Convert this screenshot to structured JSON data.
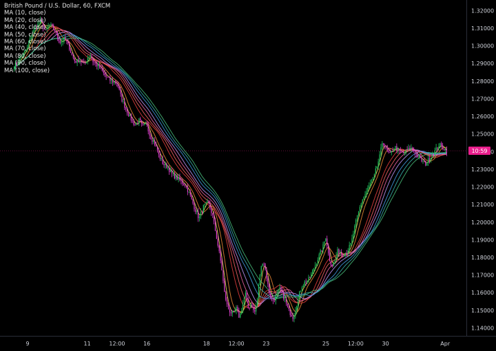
{
  "chart_data": {
    "type": "candlestick",
    "title": "British Pound / U.S. Dollar, 60, FXCM",
    "background": "#000000",
    "up_color": "#22c55e",
    "down_color": "#e040d0",
    "y_ticks": [
      "1.32000",
      "1.31000",
      "1.30000",
      "1.29000",
      "1.28000",
      "1.27000",
      "1.26000",
      "1.25000",
      "1.24000",
      "1.23000",
      "1.22000",
      "1.21000",
      "1.20000",
      "1.19000",
      "1.18000",
      "1.17000",
      "1.16000",
      "1.15000",
      "1.14000"
    ],
    "ylim": [
      1.1355,
      1.326
    ],
    "price_label": {
      "text": "10:59",
      "value": 1.2405,
      "color": "#e91e8c"
    },
    "x_ticks": [
      {
        "label": "9",
        "pos": 0.0
      },
      {
        "label": "11",
        "pos": 2.0
      },
      {
        "label": "12:00",
        "pos": 3.0
      },
      {
        "label": "16",
        "pos": 4.0
      },
      {
        "label": "18",
        "pos": 6.0
      },
      {
        "label": "12:00",
        "pos": 7.0
      },
      {
        "label": "23",
        "pos": 8.0
      },
      {
        "label": "25",
        "pos": 10.0
      },
      {
        "label": "12:00",
        "pos": 11.0
      },
      {
        "label": "30",
        "pos": 12.0
      },
      {
        "label": "Apr",
        "pos": 14.0
      }
    ],
    "x_range": [
      -0.45,
      14.5
    ],
    "close_path": [
      [
        -0.45,
        1.288
      ],
      [
        0.0,
        1.299
      ],
      [
        0.15,
        1.307
      ],
      [
        0.3,
        1.311
      ],
      [
        0.45,
        1.314
      ],
      [
        0.6,
        1.308
      ],
      [
        0.75,
        1.312
      ],
      [
        0.9,
        1.309
      ],
      [
        1.0,
        1.305
      ],
      [
        1.1,
        1.302
      ],
      [
        1.25,
        1.304
      ],
      [
        1.4,
        1.299
      ],
      [
        1.5,
        1.294
      ],
      [
        1.6,
        1.291
      ],
      [
        1.75,
        1.292
      ],
      [
        1.9,
        1.289
      ],
      [
        2.0,
        1.293
      ],
      [
        2.1,
        1.295
      ],
      [
        2.2,
        1.291
      ],
      [
        2.4,
        1.288
      ],
      [
        2.6,
        1.283
      ],
      [
        2.8,
        1.28
      ],
      [
        3.0,
        1.279
      ],
      [
        3.15,
        1.27
      ],
      [
        3.3,
        1.264
      ],
      [
        3.45,
        1.259
      ],
      [
        3.6,
        1.255
      ],
      [
        3.75,
        1.258
      ],
      [
        3.85,
        1.254
      ],
      [
        4.0,
        1.256
      ],
      [
        4.1,
        1.249
      ],
      [
        4.25,
        1.245
      ],
      [
        4.4,
        1.238
      ],
      [
        4.55,
        1.233
      ],
      [
        4.7,
        1.231
      ],
      [
        4.85,
        1.227
      ],
      [
        5.0,
        1.225
      ],
      [
        5.15,
        1.223
      ],
      [
        5.3,
        1.221
      ],
      [
        5.45,
        1.215
      ],
      [
        5.6,
        1.208
      ],
      [
        5.75,
        1.202
      ],
      [
        5.9,
        1.209
      ],
      [
        6.05,
        1.211
      ],
      [
        6.2,
        1.204
      ],
      [
        6.35,
        1.19
      ],
      [
        6.5,
        1.175
      ],
      [
        6.6,
        1.16
      ],
      [
        6.7,
        1.152
      ],
      [
        6.8,
        1.149
      ],
      [
        6.9,
        1.148
      ],
      [
        7.0,
        1.151
      ],
      [
        7.1,
        1.146
      ],
      [
        7.2,
        1.152
      ],
      [
        7.3,
        1.16
      ],
      [
        7.4,
        1.151
      ],
      [
        7.5,
        1.154
      ],
      [
        7.6,
        1.148
      ],
      [
        7.7,
        1.156
      ],
      [
        7.8,
        1.172
      ],
      [
        7.9,
        1.179
      ],
      [
        8.0,
        1.17
      ],
      [
        8.1,
        1.16
      ],
      [
        8.2,
        1.155
      ],
      [
        8.3,
        1.157
      ],
      [
        8.45,
        1.162
      ],
      [
        8.6,
        1.157
      ],
      [
        8.75,
        1.15
      ],
      [
        8.9,
        1.146
      ],
      [
        9.0,
        1.152
      ],
      [
        9.1,
        1.159
      ],
      [
        9.2,
        1.164
      ],
      [
        9.3,
        1.166
      ],
      [
        9.45,
        1.168
      ],
      [
        9.6,
        1.174
      ],
      [
        9.75,
        1.18
      ],
      [
        9.9,
        1.186
      ],
      [
        10.0,
        1.192
      ],
      [
        10.1,
        1.18
      ],
      [
        10.2,
        1.175
      ],
      [
        10.3,
        1.178
      ],
      [
        10.4,
        1.184
      ],
      [
        10.55,
        1.182
      ],
      [
        10.7,
        1.183
      ],
      [
        10.85,
        1.188
      ],
      [
        10.95,
        1.196
      ],
      [
        11.05,
        1.203
      ],
      [
        11.2,
        1.212
      ],
      [
        11.35,
        1.217
      ],
      [
        11.5,
        1.222
      ],
      [
        11.6,
        1.225
      ],
      [
        11.7,
        1.231
      ],
      [
        11.8,
        1.237
      ],
      [
        11.9,
        1.246
      ],
      [
        12.0,
        1.242
      ],
      [
        12.15,
        1.238
      ],
      [
        12.3,
        1.243
      ],
      [
        12.45,
        1.24
      ],
      [
        12.6,
        1.239
      ],
      [
        12.75,
        1.241
      ],
      [
        12.9,
        1.242
      ],
      [
        13.05,
        1.238
      ],
      [
        13.2,
        1.235
      ],
      [
        13.35,
        1.233
      ],
      [
        13.5,
        1.237
      ],
      [
        13.65,
        1.24
      ],
      [
        13.8,
        1.244
      ],
      [
        13.95,
        1.242
      ],
      [
        14.05,
        1.2405
      ]
    ],
    "moving_averages": [
      {
        "name": "MA (10, close)",
        "period": 10,
        "color": "#f6e05e"
      },
      {
        "name": "MA (20, close)",
        "period": 20,
        "color": "#ed8936"
      },
      {
        "name": "MA (40, close)",
        "period": 40,
        "color": "#e53e3e"
      },
      {
        "name": "MA (50, close)",
        "period": 50,
        "color": "#f56565"
      },
      {
        "name": "MA (60, close)",
        "period": 60,
        "color": "#ed64a6"
      },
      {
        "name": "MA (70, close)",
        "period": 70,
        "color": "#b794f4"
      },
      {
        "name": "MA (80, close)",
        "period": 80,
        "color": "#4299e1"
      },
      {
        "name": "MA (90, close)",
        "period": 90,
        "color": "#38b2ac"
      },
      {
        "name": "MA (100, close)",
        "period": 100,
        "color": "#48bb78"
      }
    ]
  }
}
